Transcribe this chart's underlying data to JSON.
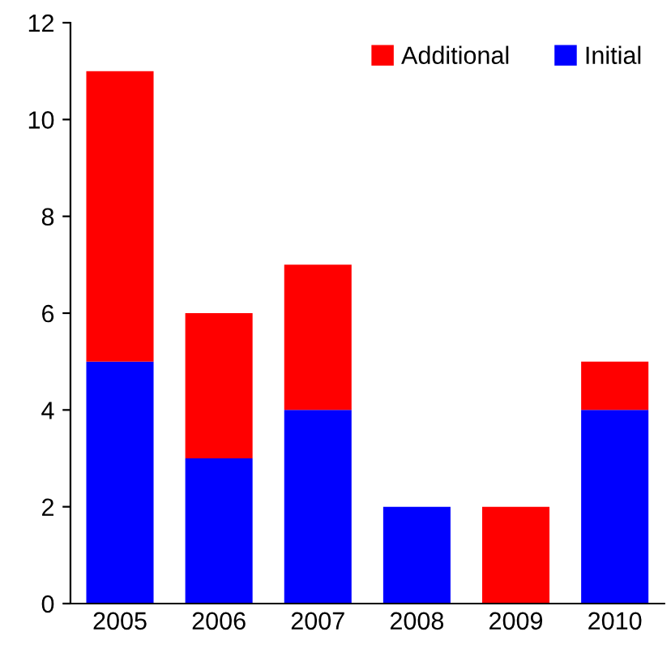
{
  "chart_data": {
    "type": "bar",
    "stacked": true,
    "categories": [
      "2005",
      "2006",
      "2007",
      "2008",
      "2009",
      "2010"
    ],
    "series": [
      {
        "name": "Initial",
        "color": "#0000ff",
        "values": [
          5,
          3,
          4,
          2,
          0,
          4
        ]
      },
      {
        "name": "Additional",
        "color": "#ff0000",
        "values": [
          6,
          3,
          3,
          0,
          2,
          1
        ]
      }
    ],
    "ylim": [
      0,
      12
    ],
    "yticks": [
      0,
      2,
      4,
      6,
      8,
      10,
      12
    ],
    "grid": false,
    "legend": "top right"
  }
}
